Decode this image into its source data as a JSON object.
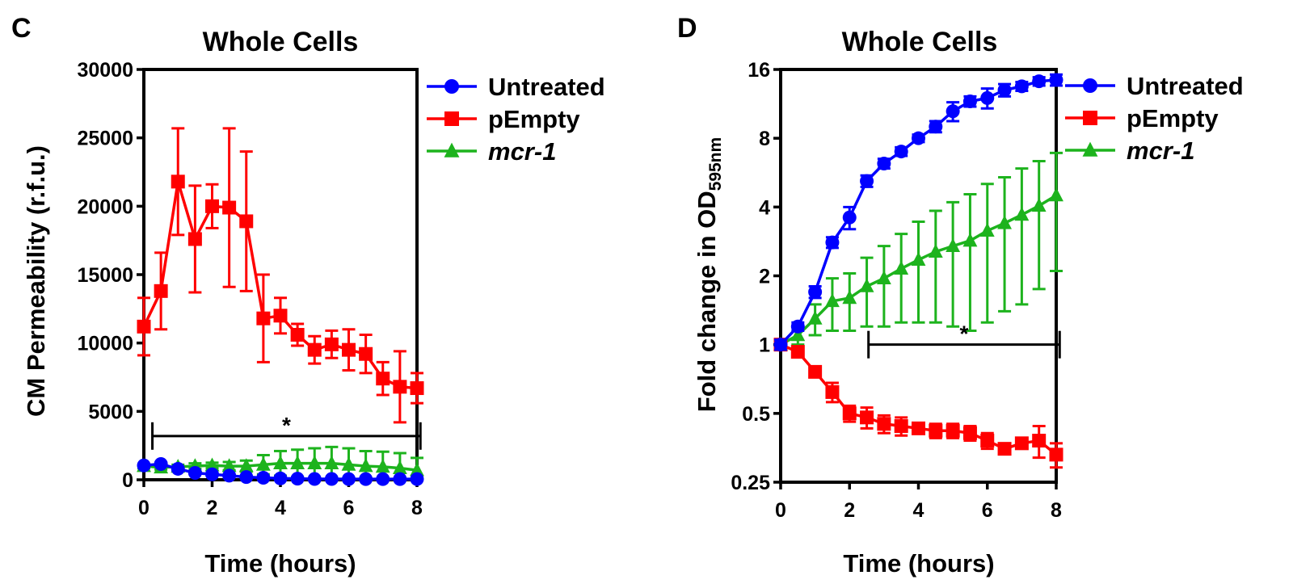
{
  "chart_data": [
    {
      "panel": "C",
      "type": "line",
      "title": "Whole Cells",
      "xlabel": "Time (hours)",
      "ylabel": "CM Permeability (r.f.u.)",
      "xlim": [
        0,
        8
      ],
      "ylim": [
        0,
        30000
      ],
      "xticks": [
        0,
        2,
        4,
        6,
        8
      ],
      "yticks": [
        0,
        5000,
        10000,
        15000,
        20000,
        25000,
        30000
      ],
      "ytick_labels": [
        "0",
        "5000",
        "10000",
        "15000",
        "20000",
        "25000",
        "30000"
      ],
      "yscale": "linear",
      "legend_position": "right",
      "significance": {
        "label": "*",
        "x_start": 0.25,
        "x_end": 8.1,
        "y": 3200
      },
      "series": [
        {
          "name": "Untreated",
          "color": "#0000ff",
          "marker": "circle",
          "x": [
            0,
            0.5,
            1,
            1.5,
            2,
            2.5,
            3,
            3.5,
            4,
            4.5,
            5,
            5.5,
            6,
            6.5,
            7,
            7.5,
            8
          ],
          "y": [
            1050,
            1150,
            800,
            500,
            400,
            300,
            200,
            150,
            100,
            80,
            60,
            60,
            50,
            50,
            50,
            50,
            50
          ],
          "err": [
            100,
            100,
            80,
            50,
            50,
            40,
            30,
            20,
            20,
            20,
            20,
            20,
            20,
            20,
            20,
            20,
            20
          ]
        },
        {
          "name": "pEmpty",
          "color": "#ff0000",
          "marker": "square",
          "x": [
            0,
            0.5,
            1,
            1.5,
            2,
            2.5,
            3,
            3.5,
            4,
            4.5,
            5,
            5.5,
            6,
            6.5,
            7,
            7.5,
            8
          ],
          "y": [
            11200,
            13800,
            21800,
            17600,
            20000,
            19900,
            18900,
            11800,
            12000,
            10600,
            9500,
            9900,
            9500,
            9200,
            7400,
            6800,
            6700
          ],
          "err": [
            2100,
            2800,
            3900,
            3900,
            1600,
            5800,
            5100,
            3200,
            1300,
            800,
            1000,
            1000,
            1500,
            1400,
            1200,
            2600,
            1100
          ]
        },
        {
          "name": "mcr-1",
          "color": "#1db31d",
          "marker": "triangle",
          "x": [
            0,
            0.5,
            1,
            1.5,
            2,
            2.5,
            3,
            3.5,
            4,
            4.5,
            5,
            5.5,
            6,
            6.5,
            7,
            7.5,
            8
          ],
          "y": [
            1000,
            900,
            950,
            1000,
            1050,
            1000,
            1000,
            1100,
            1200,
            1200,
            1200,
            1200,
            1100,
            1000,
            950,
            850,
            700
          ],
          "err": [
            150,
            150,
            150,
            200,
            200,
            300,
            400,
            700,
            900,
            1000,
            1100,
            1200,
            1200,
            1100,
            1100,
            1100,
            900
          ]
        }
      ]
    },
    {
      "panel": "D",
      "type": "line",
      "title": "Whole Cells",
      "xlabel": "Time (hours)",
      "ylabel": "Fold change in OD",
      "ylabel_subscript": "595nm",
      "xlim": [
        0,
        8
      ],
      "ylim": [
        0.25,
        16
      ],
      "xticks": [
        0,
        2,
        4,
        6,
        8
      ],
      "yticks": [
        0.25,
        0.5,
        1,
        2,
        4,
        8,
        16
      ],
      "ytick_labels": [
        "0.25",
        "0.5",
        "1",
        "2",
        "4",
        "8",
        "16"
      ],
      "yscale": "log2",
      "legend_position": "right",
      "significance": {
        "label": "*",
        "x_start": 2.55,
        "x_end": 8.1,
        "y": 1.0
      },
      "series": [
        {
          "name": "Untreated",
          "color": "#0000ff",
          "marker": "circle",
          "x": [
            0,
            0.5,
            1,
            1.5,
            2,
            2.5,
            3,
            3.5,
            4,
            4.5,
            5,
            5.5,
            6,
            6.5,
            7,
            7.5,
            8
          ],
          "y": [
            1.0,
            1.2,
            1.7,
            2.8,
            3.6,
            5.2,
            6.2,
            7.0,
            8.0,
            9.0,
            10.5,
            11.6,
            12.0,
            13.0,
            13.5,
            14.2,
            14.4
          ],
          "err": [
            0.05,
            0.05,
            0.1,
            0.15,
            0.4,
            0.3,
            0.3,
            0.3,
            0.3,
            0.5,
            1.0,
            0.6,
            1.2,
            0.8,
            0.6,
            0.6,
            0.8
          ]
        },
        {
          "name": "pEmpty",
          "color": "#ff0000",
          "marker": "square",
          "x": [
            0,
            0.5,
            1,
            1.5,
            2,
            2.5,
            3,
            3.5,
            4,
            4.5,
            5,
            5.5,
            6,
            6.5,
            7,
            7.5,
            8
          ],
          "y": [
            1.0,
            0.93,
            0.76,
            0.62,
            0.5,
            0.48,
            0.45,
            0.44,
            0.43,
            0.42,
            0.42,
            0.41,
            0.38,
            0.35,
            0.37,
            0.38,
            0.33
          ],
          "err": [
            0.03,
            0.05,
            0.03,
            0.06,
            0.04,
            0.05,
            0.04,
            0.04,
            0.02,
            0.03,
            0.03,
            0.03,
            0.03,
            0.01,
            0.01,
            0.06,
            0.04
          ]
        },
        {
          "name": "mcr-1",
          "color": "#1db31d",
          "marker": "triangle",
          "x": [
            0,
            0.5,
            1,
            1.5,
            2,
            2.5,
            3,
            3.5,
            4,
            4.5,
            5,
            5.5,
            6,
            6.5,
            7,
            7.5,
            8
          ],
          "y": [
            1.0,
            1.1,
            1.3,
            1.55,
            1.6,
            1.8,
            1.95,
            2.15,
            2.35,
            2.55,
            2.7,
            2.85,
            3.15,
            3.4,
            3.7,
            4.05,
            4.5
          ],
          "err": [
            0.05,
            0.1,
            0.2,
            0.4,
            0.45,
            0.6,
            0.75,
            0.9,
            1.1,
            1.3,
            1.5,
            1.7,
            1.9,
            2.0,
            2.2,
            2.3,
            2.4
          ]
        }
      ]
    }
  ]
}
